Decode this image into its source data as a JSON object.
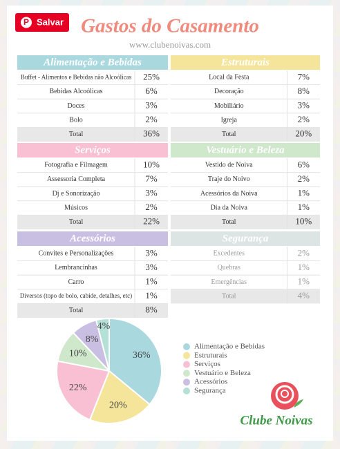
{
  "header": {
    "button": "Salvar",
    "title": "Gastos do Casamento",
    "url": "www.clubenoivas.com"
  },
  "sections": [
    {
      "title": "Alimentação e Bebidas",
      "rows": [
        [
          "Buffet - Alimentos e Bebidas não Alcoólicas",
          "25%"
        ],
        [
          "Bebidas Alcoólicas",
          "6%"
        ],
        [
          "Doces",
          "3%"
        ],
        [
          "Bolo",
          "2%"
        ],
        [
          "Total",
          "36%"
        ]
      ]
    },
    {
      "title": "Estruturais",
      "rows": [
        [
          "Local da Festa",
          "7%"
        ],
        [
          "Decoração",
          "8%"
        ],
        [
          "Mobiliário",
          "3%"
        ],
        [
          "Igreja",
          "2%"
        ],
        [
          "Total",
          "20%"
        ]
      ]
    },
    {
      "title": "Serviços",
      "rows": [
        [
          "Fotografia e Filmagem",
          "10%"
        ],
        [
          "Assessoria Completa",
          "7%"
        ],
        [
          "Dj e Sonorização",
          "3%"
        ],
        [
          "Músicos",
          "2%"
        ],
        [
          "Total",
          "22%"
        ]
      ]
    },
    {
      "title": "Vestuário e Beleza",
      "rows": [
        [
          "Vestido de Noiva",
          "6%"
        ],
        [
          "Traje do Noivo",
          "2%"
        ],
        [
          "Acessórios da Noiva",
          "1%"
        ],
        [
          "Dia da Noiva",
          "1%"
        ],
        [
          "Total",
          "10%"
        ]
      ]
    },
    {
      "title": "Acessórios",
      "rows": [
        [
          "Convites e Personalizações",
          "3%"
        ],
        [
          "Lembrancinhas",
          "3%"
        ],
        [
          "Carro",
          "1%"
        ],
        [
          "Diversos (topo de bolo, cabide, detalhes, etc)",
          "1%"
        ],
        [
          "Total",
          "8%"
        ]
      ]
    },
    {
      "title": "Segurança",
      "rows": [
        [
          "Excedentes",
          "2%"
        ],
        [
          "Quebras",
          "1%"
        ],
        [
          "Emergências",
          "1%"
        ],
        [
          "Total",
          "4%"
        ]
      ]
    }
  ],
  "chart_data": {
    "type": "pie",
    "categories": [
      "Alimentação e Bebidas",
      "Estruturais",
      "Serviços",
      "Vestuário e Beleza",
      "Acessórios",
      "Segurança"
    ],
    "values": [
      36,
      20,
      22,
      10,
      8,
      4
    ],
    "value_labels": [
      "36%",
      "20%",
      "22%",
      "10%",
      "8%",
      "4%"
    ],
    "colors": [
      "#a9d8df",
      "#f5e59a",
      "#f8c0d2",
      "#cfe8cc",
      "#c9bfe2",
      "#b5e0d8"
    ]
  },
  "logo": "Clube Noivas"
}
